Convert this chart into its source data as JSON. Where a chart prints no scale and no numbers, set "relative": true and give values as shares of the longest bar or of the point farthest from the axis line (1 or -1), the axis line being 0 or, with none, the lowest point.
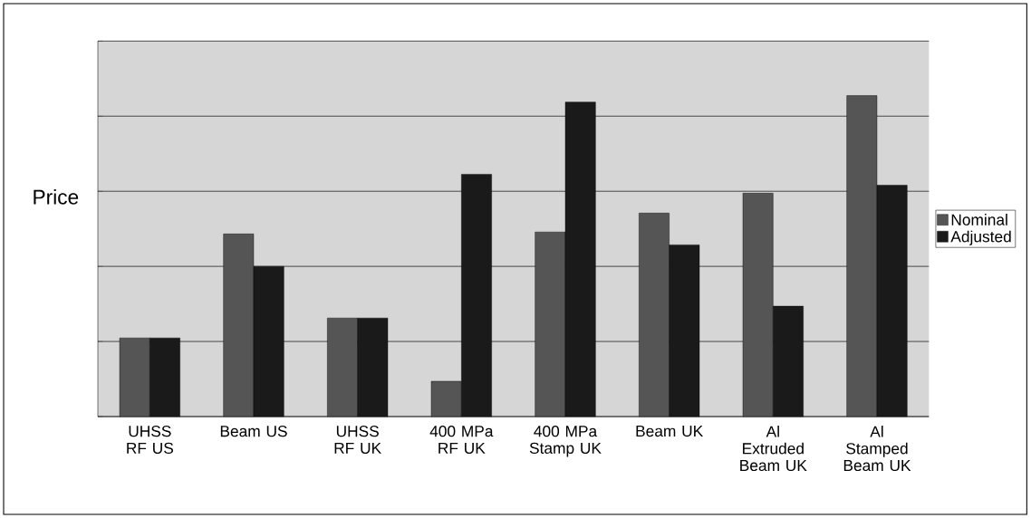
{
  "chart_data": {
    "type": "bar",
    "ylabel": "Price",
    "relative": true,
    "grid": "y",
    "legend": "right",
    "categories": [
      "UHSS RF US",
      "Beam US",
      "UHSS RF UK",
      "400 MPa RF UK",
      "400 MPa Stamp UK",
      "Beam UK",
      "Al Extruded Beam UK",
      "Al Stamped Beam UK"
    ],
    "series": [
      {
        "name": "Nominal",
        "color": "#555555",
        "values": [
          0.245,
          0.569,
          0.307,
          0.11,
          0.575,
          0.634,
          0.696,
          1
        ]
      },
      {
        "name": "Adjusted",
        "color": "#1a1a1a",
        "values": [
          0.245,
          0.468,
          0.307,
          0.755,
          0.98,
          0.535,
          0.344,
          0.721
        ]
      }
    ]
  }
}
